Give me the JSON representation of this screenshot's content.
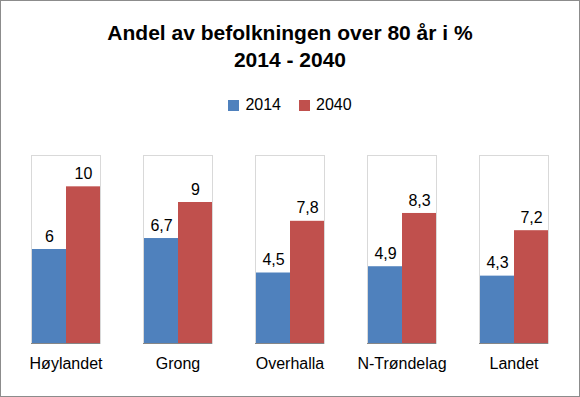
{
  "chart_data": {
    "type": "bar",
    "title": "Andel av befolkningen over 80 år i %",
    "subtitle": "2014 - 2040",
    "categories": [
      "Høylandet",
      "Grong",
      "Overhalla",
      "N-Trøndelag",
      "Landet"
    ],
    "series": [
      {
        "name": "2014",
        "color": "#4f81bd",
        "values": [
          6,
          6.7,
          4.5,
          4.9,
          4.3
        ],
        "value_labels": [
          "6",
          "6,7",
          "4,5",
          "4,9",
          "4,3"
        ]
      },
      {
        "name": "2040",
        "color": "#c0504d",
        "values": [
          10,
          9,
          7.8,
          8.3,
          7.2
        ],
        "value_labels": [
          "10",
          "9",
          "7,8",
          "8,3",
          "7,2"
        ]
      }
    ],
    "ylim": [
      0,
      12
    ],
    "grid": false,
    "legend": "top",
    "data_labels": true,
    "tick_labels": "x"
  }
}
